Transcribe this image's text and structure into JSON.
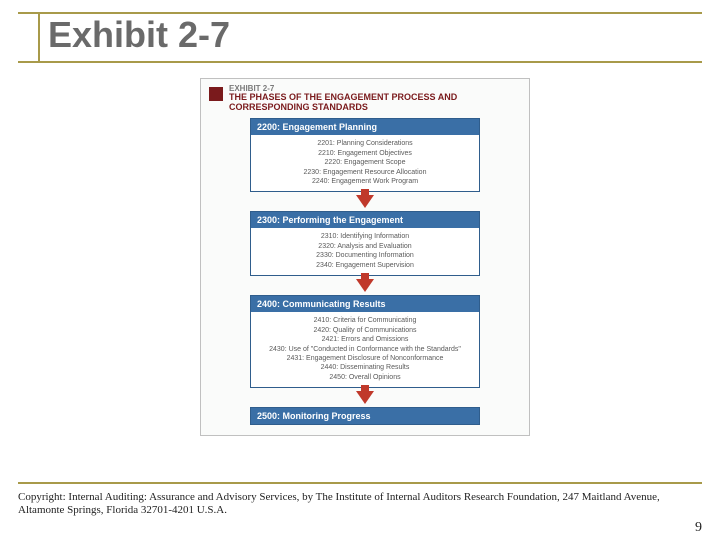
{
  "colors": {
    "accent_olive": "#a89a4a",
    "title_text": "#6a6a6a",
    "fig_title": "#7a1a1c",
    "phase_blue": "#3a6fa6",
    "phase_blue_border": "#2f5d8c",
    "arrow": "#c0392b",
    "arrow_stem": "#c0392b",
    "item_text": "#5a5a5a",
    "footer_text": "#222222",
    "rule_gray": "#b8b8b8"
  },
  "title": "Exhibit 2-7",
  "figure": {
    "exhibit_label": "EXHIBIT 2-7",
    "title": "THE PHASES OF THE ENGAGEMENT PROCESS AND CORRESPONDING STANDARDS",
    "phases": [
      {
        "header": "2200: Engagement Planning",
        "items": [
          "2201: Planning Considerations",
          "2210: Engagement Objectives",
          "2220: Engagement Scope",
          "2230: Engagement Resource Allocation",
          "2240: Engagement Work Program"
        ]
      },
      {
        "header": "2300: Performing the Engagement",
        "items": [
          "2310: Identifying Information",
          "2320: Analysis and Evaluation",
          "2330: Documenting Information",
          "2340: Engagement Supervision"
        ]
      },
      {
        "header": "2400: Communicating Results",
        "items": [
          "2410: Criteria for Communicating",
          "2420: Quality of Communications",
          "2421: Errors and Omissions",
          "2430: Use of \"Conducted in Conformance with the Standards\"",
          "2431: Engagement Disclosure of Nonconformance",
          "2440: Disseminating Results",
          "2450: Overall Opinions"
        ]
      },
      {
        "header": "2500: Monitoring Progress",
        "items": []
      }
    ]
  },
  "footer": "Copyright: Internal Auditing: Assurance and Advisory Services, by The Institute of Internal Auditors Research Foundation, 247 Maitland Avenue, Altamonte Springs, Florida 32701-4201 U.S.A.",
  "page_number": "9"
}
